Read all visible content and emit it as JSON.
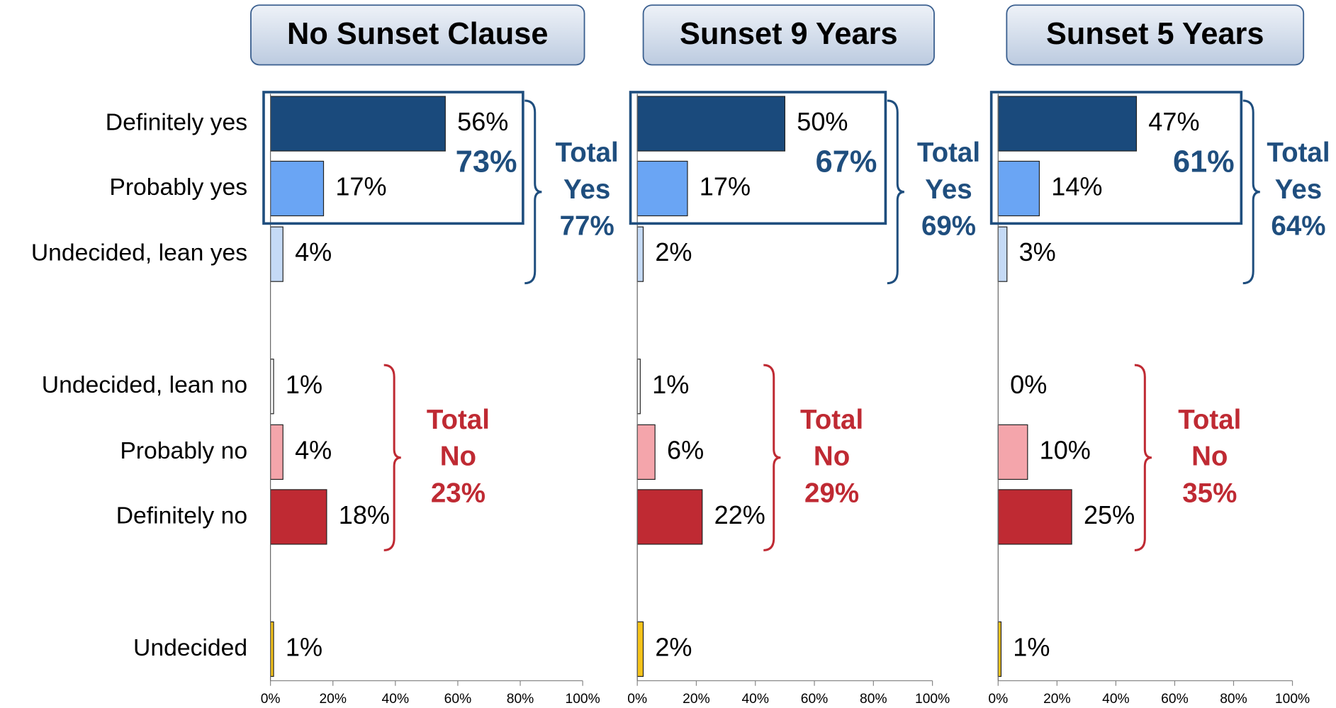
{
  "chart_data": [
    {
      "type": "bar",
      "title": "No Sunset Clause",
      "categories": [
        "Definitely yes",
        "Probably yes",
        "Undecided, lean yes",
        "Undecided, lean no",
        "Probably no",
        "Definitely no",
        "Undecided"
      ],
      "values": [
        56,
        17,
        4,
        1,
        4,
        18,
        1
      ],
      "value_labels": [
        "56%",
        "17%",
        "4%",
        "1%",
        "4%",
        "18%",
        "1%"
      ],
      "colors": [
        "#1a4a7c",
        "#6aa5f4",
        "#c5daf6",
        "#ffffff",
        "#f4a5ab",
        "#bf2a33",
        "#f5c31a"
      ],
      "xlim": [
        0,
        100
      ],
      "xticks": [
        {
          "value": 0,
          "label": "0%"
        },
        {
          "value": 20,
          "label": "20%"
        },
        {
          "value": 40,
          "label": "40%"
        },
        {
          "value": 60,
          "label": "60%"
        },
        {
          "value": 80,
          "label": "80%"
        },
        {
          "value": 100,
          "label": "100%"
        }
      ],
      "box_label": "73%",
      "yes_total": [
        "Total",
        "Yes",
        "77%"
      ],
      "no_total": [
        "Total",
        "No",
        "23%"
      ]
    },
    {
      "type": "bar",
      "title": "Sunset 9 Years",
      "values": [
        50,
        17,
        2,
        1,
        6,
        22,
        2
      ],
      "value_labels": [
        "50%",
        "17%",
        "2%",
        "1%",
        "6%",
        "22%",
        "2%"
      ],
      "colors": [
        "#1a4a7c",
        "#6aa5f4",
        "#c5daf6",
        "#ffffff",
        "#f4a5ab",
        "#bf2a33",
        "#f5c31a"
      ],
      "xlim": [
        0,
        100
      ],
      "xticks": [
        {
          "value": 0,
          "label": "0%"
        },
        {
          "value": 20,
          "label": "20%"
        },
        {
          "value": 40,
          "label": "40%"
        },
        {
          "value": 60,
          "label": "60%"
        },
        {
          "value": 80,
          "label": "80%"
        },
        {
          "value": 100,
          "label": "100%"
        }
      ],
      "box_label": "67%",
      "yes_total": [
        "Total",
        "Yes",
        "69%"
      ],
      "no_total": [
        "Total",
        "No",
        "29%"
      ]
    },
    {
      "type": "bar",
      "title": "Sunset 5 Years",
      "values": [
        47,
        14,
        3,
        0,
        10,
        25,
        1
      ],
      "value_labels": [
        "47%",
        "14%",
        "3%",
        "0%",
        "10%",
        "25%",
        "1%"
      ],
      "colors": [
        "#1a4a7c",
        "#6aa5f4",
        "#c5daf6",
        "#ffffff",
        "#f4a5ab",
        "#bf2a33",
        "#f5c31a"
      ],
      "xlim": [
        0,
        100
      ],
      "xticks": [
        {
          "value": 0,
          "label": "0%"
        },
        {
          "value": 20,
          "label": "20%"
        },
        {
          "value": 40,
          "label": "40%"
        },
        {
          "value": 60,
          "label": "60%"
        },
        {
          "value": 80,
          "label": "80%"
        },
        {
          "value": 100,
          "label": "100%"
        }
      ],
      "box_label": "61%",
      "yes_total": [
        "Total",
        "Yes",
        "64%"
      ],
      "no_total": [
        "Total",
        "No",
        "35%"
      ]
    }
  ]
}
